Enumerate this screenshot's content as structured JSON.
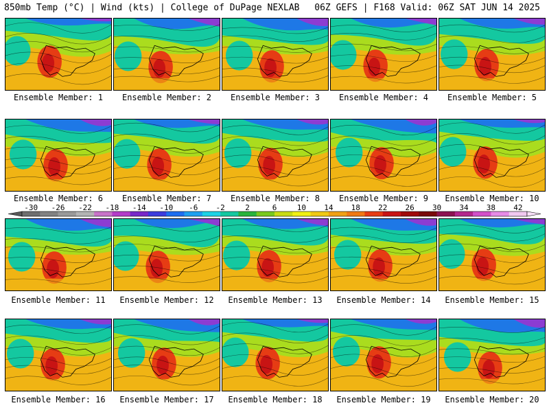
{
  "header": {
    "left": "850mb Temp (°C) | Wind (kts) | College of DuPage NEXLAB",
    "right": "06Z GEFS | F168 Valid: 06Z SAT JUN 14 2025"
  },
  "panels": [
    {
      "label": "Ensemble Member: 1"
    },
    {
      "label": "Ensemble Member: 2"
    },
    {
      "label": "Ensemble Member: 3"
    },
    {
      "label": "Ensemble Member: 4"
    },
    {
      "label": "Ensemble Member: 5"
    },
    {
      "label": "Ensemble Member: 6"
    },
    {
      "label": "Ensemble Member: 7"
    },
    {
      "label": "Ensemble Member: 8"
    },
    {
      "label": "Ensemble Member: 9"
    },
    {
      "label": "Ensemble Member: 10"
    },
    {
      "label": "Ensemble Member: 11"
    },
    {
      "label": "Ensemble Member: 12"
    },
    {
      "label": "Ensemble Member: 13"
    },
    {
      "label": "Ensemble Member: 14"
    },
    {
      "label": "Ensemble Member: 15"
    },
    {
      "label": "Ensemble Member: 16"
    },
    {
      "label": "Ensemble Member: 17"
    },
    {
      "label": "Ensemble Member: 18"
    },
    {
      "label": "Ensemble Member: 19"
    },
    {
      "label": "Ensemble Member: 20"
    }
  ],
  "colorbar": {
    "ticks": [
      "-30",
      "-26",
      "-22",
      "-18",
      "-14",
      "-10",
      "-6",
      "-2",
      "2",
      "6",
      "10",
      "14",
      "18",
      "22",
      "26",
      "30",
      "34",
      "38",
      "42"
    ],
    "colors": [
      "#6e6e6e",
      "#828282",
      "#9a9a9a",
      "#b4b4b4",
      "#c873c8",
      "#b43cc8",
      "#7828c8",
      "#3c3cdc",
      "#1e6ef0",
      "#1ea0f0",
      "#1ed2e6",
      "#14c8a0",
      "#28b43c",
      "#78c81e",
      "#c8dc14",
      "#f0f014",
      "#f0c814",
      "#f0a014",
      "#f07814",
      "#e63c14",
      "#c81414",
      "#a00a0a",
      "#780a0a",
      "#8c1450",
      "#b4288c",
      "#d250c8",
      "#e68ce6",
      "#f0c8f0"
    ]
  },
  "map_colors": {
    "cold": "#8c3cd2",
    "cool": "#1e78e6",
    "mid": "#14c8a0",
    "mild": "#aadc1e",
    "warm": "#f0b414",
    "hot": "#e63c14",
    "hottest": "#c81414"
  }
}
